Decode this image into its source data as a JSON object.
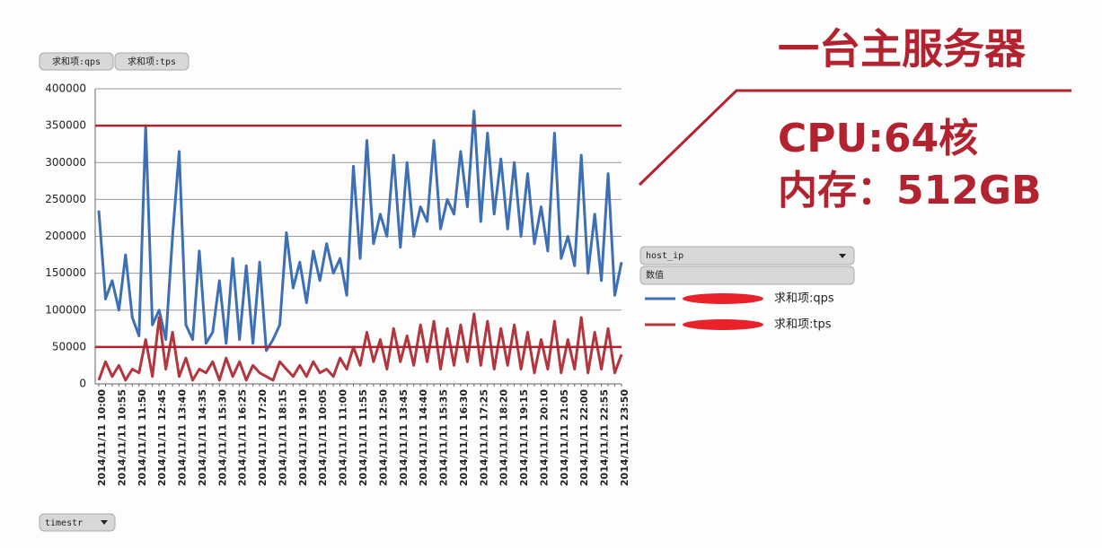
{
  "chart_data": {
    "type": "line",
    "categories": [
      "2014/11/11 10:00",
      null,
      null,
      "2014/11/11 10:55",
      null,
      null,
      "2014/11/11 11:50",
      null,
      null,
      "2014/11/11 12:45",
      null,
      null,
      "2014/11/11 13:40",
      null,
      null,
      "2014/11/11 14:35",
      null,
      null,
      "2014/11/11 15:30",
      null,
      null,
      "2014/11/11 16:25",
      null,
      null,
      "2014/11/11 17:20",
      null,
      null,
      "2014/11/11 18:15",
      null,
      null,
      "2014/11/11 19:10",
      null,
      null,
      "2014/11/11 10:05",
      null,
      null,
      "2014/11/11 11:00",
      null,
      null,
      "2014/11/11 11:55",
      null,
      null,
      "2014/11/11 12:50",
      null,
      null,
      "2014/11/11 13:45",
      null,
      null,
      "2014/11/11 14:40",
      null,
      null,
      "2014/11/11 15:35",
      null,
      null,
      "2014/11/11 16:30",
      null,
      null,
      "2014/11/11 17:25",
      null,
      null,
      "2014/11/11 18:20",
      null,
      null,
      "2014/11/11 19:15",
      null,
      null,
      "2014/11/11 20:10",
      null,
      null,
      "2014/11/11 21:05",
      null,
      null,
      "2014/11/11 22:00",
      null,
      null,
      "2014/11/11 22:55",
      null,
      null,
      "2014/11/11 23:50"
    ],
    "series": [
      {
        "name": "求和项:qps",
        "color": "#3d6fb5",
        "values": [
          235000,
          115000,
          140000,
          100000,
          175000,
          90000,
          65000,
          350000,
          80000,
          100000,
          60000,
          200000,
          315000,
          80000,
          60000,
          180000,
          55000,
          70000,
          140000,
          55000,
          170000,
          60000,
          160000,
          55000,
          165000,
          45000,
          60000,
          80000,
          205000,
          130000,
          165000,
          110000,
          180000,
          140000,
          190000,
          150000,
          170000,
          120000,
          295000,
          170000,
          330000,
          190000,
          230000,
          200000,
          310000,
          185000,
          300000,
          200000,
          240000,
          220000,
          330000,
          210000,
          250000,
          230000,
          315000,
          240000,
          370000,
          220000,
          340000,
          230000,
          305000,
          210000,
          300000,
          200000,
          285000,
          190000,
          240000,
          180000,
          340000,
          170000,
          200000,
          160000,
          310000,
          150000,
          230000,
          140000,
          285000,
          120000,
          165000
        ]
      },
      {
        "name": "求和项:tps",
        "color": "#b1363d",
        "values": [
          5000,
          30000,
          10000,
          25000,
          5000,
          20000,
          15000,
          60000,
          10000,
          90000,
          20000,
          70000,
          10000,
          35000,
          5000,
          20000,
          15000,
          30000,
          5000,
          35000,
          10000,
          30000,
          5000,
          25000,
          15000,
          10000,
          5000,
          30000,
          20000,
          10000,
          25000,
          10000,
          30000,
          15000,
          20000,
          10000,
          35000,
          20000,
          50000,
          25000,
          70000,
          30000,
          60000,
          20000,
          75000,
          30000,
          65000,
          25000,
          80000,
          30000,
          85000,
          20000,
          75000,
          25000,
          80000,
          30000,
          95000,
          25000,
          85000,
          20000,
          75000,
          25000,
          80000,
          20000,
          70000,
          15000,
          60000,
          20000,
          85000,
          15000,
          60000,
          20000,
          90000,
          15000,
          70000,
          20000,
          75000,
          15000,
          40000
        ]
      }
    ],
    "ylim": [
      0,
      400000
    ],
    "yticks": [
      0,
      50000,
      100000,
      150000,
      200000,
      250000,
      300000,
      350000,
      400000
    ],
    "grid": true,
    "reference_lines": {
      "values": [
        350000,
        50000
      ],
      "color": "#b0222e"
    },
    "legend_field": "host_ip",
    "value_field": "数值",
    "axis_field": "timestr"
  },
  "slide": {
    "title": "一台主服务器",
    "lines": [
      "CPU:64核",
      "内存：512GB"
    ]
  }
}
